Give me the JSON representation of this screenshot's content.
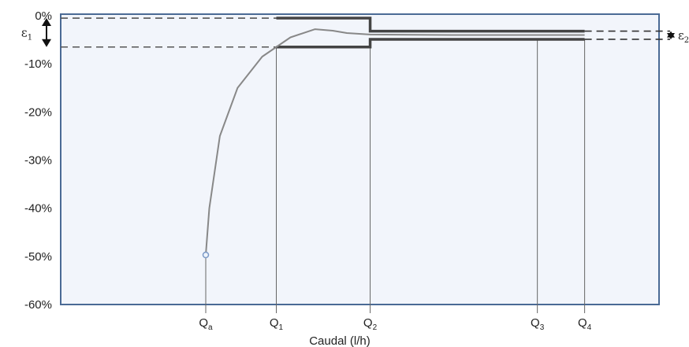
{
  "chart_data": {
    "type": "line",
    "title": "",
    "xlabel": "Caudal (l/h)",
    "ylabel": "",
    "ylim": [
      -60,
      0
    ],
    "y_ticks": [
      "0%",
      "-10%",
      "-20%",
      "-30%",
      "-40%",
      "-50%",
      "-60%"
    ],
    "y_tick_values": [
      0,
      -10,
      -20,
      -30,
      -40,
      -50,
      -60
    ],
    "x_markers": [
      {
        "base": "Q",
        "sub": "a",
        "x": 0
      },
      {
        "base": "Q",
        "sub": "1",
        "x": 1
      },
      {
        "base": "Q",
        "sub": "2",
        "x": 2.33
      },
      {
        "base": "Q",
        "sub": "3",
        "x": 4.7
      },
      {
        "base": "Q",
        "sub": "4",
        "x": 5.37
      }
    ],
    "tolerance_bands": [
      {
        "symbol": "ε",
        "sub": "1",
        "x_from": 1,
        "x_to": 2.33,
        "upper": -0.5,
        "lower": -6.5
      },
      {
        "symbol": "ε",
        "sub": "2",
        "x_from": 2.33,
        "x_to": 5.37,
        "upper": -3.2,
        "lower": -4.9
      }
    ],
    "series": [
      {
        "name": "",
        "x": [
          0,
          0.05,
          0.2,
          0.45,
          0.8,
          1.2,
          1.55,
          1.8,
          2.0,
          2.33,
          3.5,
          5.37
        ],
        "y": [
          -49.7,
          -40,
          -25,
          -15,
          -8.5,
          -4.5,
          -2.8,
          -3.1,
          -3.6,
          -3.9,
          -4.0,
          -4.0
        ]
      }
    ],
    "grid": false,
    "legend": "none",
    "colors": {
      "plot_bg": "#f2f5fb",
      "plot_border": "#4a6a95",
      "band": "#444444",
      "curve": "#888888"
    }
  }
}
